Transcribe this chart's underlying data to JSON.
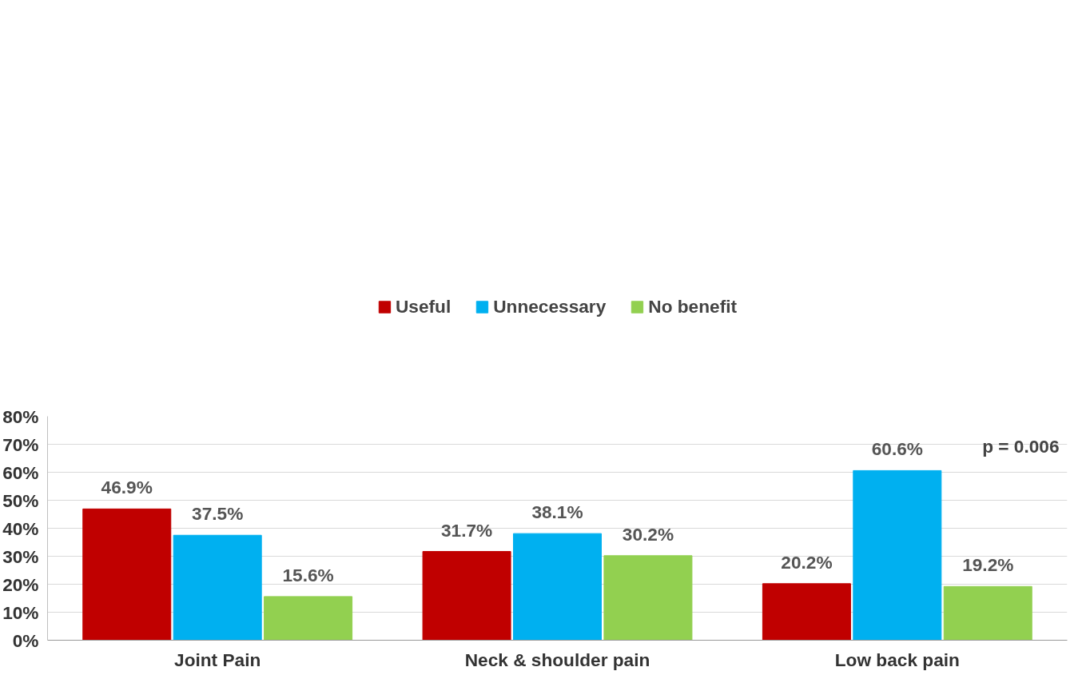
{
  "chart_data": {
    "type": "bar",
    "categories": [
      "Joint Pain",
      "Neck & shoulder pain",
      "Low back pain"
    ],
    "series": [
      {
        "name": "Useful",
        "color": "#c00000",
        "values": [
          46.9,
          31.7,
          20.2
        ],
        "value_labels": [
          "46.9%",
          "31.7%",
          "20.2%"
        ]
      },
      {
        "name": "Unnecessary",
        "color": "#00b0f0",
        "values": [
          37.5,
          38.1,
          60.6
        ],
        "value_labels": [
          "37.5%",
          "38.1%",
          "60.6%"
        ]
      },
      {
        "name": "No benefit",
        "color": "#92d050",
        "values": [
          15.6,
          30.2,
          19.2
        ],
        "value_labels": [
          "15.6%",
          "30.2%",
          "19.2%"
        ]
      }
    ],
    "ylim": [
      0,
      80
    ],
    "yticks": [
      {
        "value": 0,
        "label": "0%"
      },
      {
        "value": 10,
        "label": "10%"
      },
      {
        "value": 20,
        "label": "20%"
      },
      {
        "value": 30,
        "label": "30%"
      },
      {
        "value": 40,
        "label": "40%"
      },
      {
        "value": 50,
        "label": "50%"
      },
      {
        "value": 60,
        "label": "60%"
      },
      {
        "value": 70,
        "label": "70%"
      },
      {
        "value": 80,
        "label": "80%"
      }
    ],
    "grid": "y",
    "legend": "top",
    "annotations": [
      "p = 0.006"
    ]
  }
}
